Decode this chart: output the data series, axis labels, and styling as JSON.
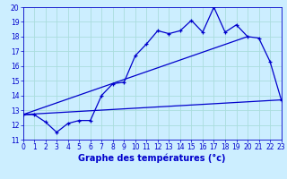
{
  "background_color": "#cceeff",
  "grid_color": "#aadddd",
  "line_color": "#0000cc",
  "xlabel": "Graphe des températures (°c)",
  "ylim": [
    11,
    20
  ],
  "xlim": [
    0,
    23
  ],
  "yticks": [
    11,
    12,
    13,
    14,
    15,
    16,
    17,
    18,
    19,
    20
  ],
  "xticks": [
    0,
    1,
    2,
    3,
    4,
    5,
    6,
    7,
    8,
    9,
    10,
    11,
    12,
    13,
    14,
    15,
    16,
    17,
    18,
    19,
    20,
    21,
    22,
    23
  ],
  "main_x": [
    0,
    1,
    2,
    3,
    4,
    5,
    6,
    7,
    8,
    9,
    10,
    11,
    12,
    13,
    14,
    15,
    16,
    17,
    18,
    19,
    20,
    21,
    22,
    23
  ],
  "main_y": [
    12.7,
    12.7,
    12.2,
    11.5,
    12.1,
    12.3,
    12.3,
    14.0,
    14.8,
    14.9,
    16.7,
    17.5,
    18.4,
    18.2,
    18.4,
    19.1,
    18.3,
    20.0,
    18.3,
    18.8,
    18.0,
    17.9,
    16.3,
    13.7
  ],
  "line2_x": [
    0,
    23
  ],
  "line2_y": [
    12.7,
    13.7
  ],
  "line3_x": [
    0,
    20
  ],
  "line3_y": [
    12.7,
    18.0
  ],
  "xlabel_fontsize": 7,
  "tick_fontsize": 5.5
}
